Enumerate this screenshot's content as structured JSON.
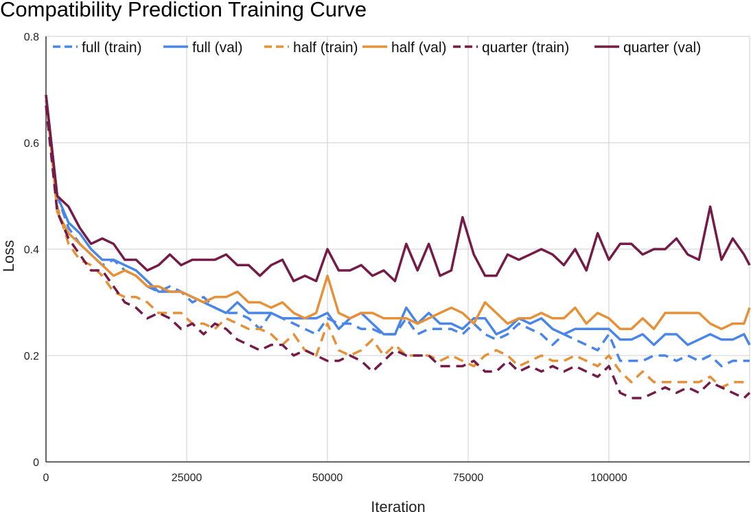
{
  "chart_data": {
    "type": "line",
    "title": "Compatibility Prediction Training Curve",
    "xlabel": "Iteration",
    "ylabel": "Loss",
    "xlim": [
      0,
      125000
    ],
    "ylim": [
      0,
      0.8
    ],
    "xticks": [
      0,
      25000,
      50000,
      75000,
      100000
    ],
    "xtick_labels": [
      "0",
      "25000",
      "50000",
      "75000",
      "100000"
    ],
    "yticks": [
      0,
      0.2,
      0.4,
      0.6,
      0.8
    ],
    "ytick_labels": [
      "0",
      "0.2",
      "0.4",
      "0.6",
      "0.8"
    ],
    "grid": true,
    "legend_position": "top",
    "x": [
      0,
      2000,
      4000,
      6000,
      8000,
      10000,
      12000,
      14000,
      16000,
      18000,
      20000,
      22000,
      24000,
      26000,
      28000,
      30000,
      32000,
      34000,
      36000,
      38000,
      40000,
      42000,
      44000,
      46000,
      48000,
      50000,
      52000,
      54000,
      56000,
      58000,
      60000,
      62000,
      64000,
      66000,
      68000,
      70000,
      72000,
      74000,
      76000,
      78000,
      80000,
      82000,
      84000,
      86000,
      88000,
      90000,
      92000,
      94000,
      96000,
      98000,
      100000,
      102000,
      104000,
      106000,
      108000,
      110000,
      112000,
      114000,
      116000,
      118000,
      120000,
      122000,
      124000,
      125000
    ],
    "series": [
      {
        "name": "full (train)",
        "color": "#4a86e8",
        "dash": true,
        "values": [
          0.68,
          0.5,
          0.44,
          0.41,
          0.39,
          0.37,
          0.38,
          0.36,
          0.35,
          0.33,
          0.32,
          0.33,
          0.32,
          0.3,
          0.31,
          0.29,
          0.28,
          0.28,
          0.27,
          0.25,
          0.28,
          0.27,
          0.26,
          0.25,
          0.24,
          0.27,
          0.26,
          0.26,
          0.25,
          0.25,
          0.24,
          0.24,
          0.27,
          0.24,
          0.25,
          0.25,
          0.25,
          0.24,
          0.26,
          0.24,
          0.23,
          0.24,
          0.26,
          0.25,
          0.24,
          0.22,
          0.24,
          0.23,
          0.22,
          0.21,
          0.24,
          0.19,
          0.19,
          0.19,
          0.2,
          0.2,
          0.19,
          0.2,
          0.19,
          0.2,
          0.18,
          0.19,
          0.19,
          0.19
        ]
      },
      {
        "name": "full (val)",
        "color": "#4a86e8",
        "dash": false,
        "values": [
          0.69,
          0.5,
          0.45,
          0.43,
          0.4,
          0.38,
          0.38,
          0.37,
          0.36,
          0.34,
          0.32,
          0.32,
          0.32,
          0.31,
          0.3,
          0.29,
          0.28,
          0.3,
          0.28,
          0.28,
          0.28,
          0.27,
          0.27,
          0.27,
          0.27,
          0.28,
          0.25,
          0.27,
          0.28,
          0.26,
          0.24,
          0.24,
          0.29,
          0.26,
          0.28,
          0.26,
          0.26,
          0.25,
          0.27,
          0.27,
          0.24,
          0.25,
          0.27,
          0.26,
          0.27,
          0.25,
          0.24,
          0.25,
          0.25,
          0.25,
          0.25,
          0.23,
          0.23,
          0.24,
          0.22,
          0.24,
          0.24,
          0.22,
          0.23,
          0.24,
          0.23,
          0.23,
          0.24,
          0.22
        ]
      },
      {
        "name": "half (train)",
        "color": "#e69138",
        "dash": true,
        "values": [
          0.69,
          0.48,
          0.41,
          0.38,
          0.37,
          0.35,
          0.32,
          0.31,
          0.31,
          0.3,
          0.28,
          0.28,
          0.28,
          0.26,
          0.26,
          0.25,
          0.27,
          0.26,
          0.25,
          0.25,
          0.24,
          0.22,
          0.24,
          0.21,
          0.2,
          0.26,
          0.21,
          0.2,
          0.21,
          0.23,
          0.2,
          0.22,
          0.2,
          0.2,
          0.2,
          0.19,
          0.2,
          0.19,
          0.18,
          0.2,
          0.21,
          0.2,
          0.18,
          0.19,
          0.2,
          0.19,
          0.19,
          0.2,
          0.19,
          0.18,
          0.2,
          0.17,
          0.15,
          0.17,
          0.15,
          0.15,
          0.15,
          0.15,
          0.15,
          0.16,
          0.14,
          0.15,
          0.15,
          0.15
        ]
      },
      {
        "name": "half (val)",
        "color": "#e69138",
        "dash": false,
        "values": [
          0.69,
          0.47,
          0.43,
          0.41,
          0.39,
          0.37,
          0.35,
          0.36,
          0.35,
          0.33,
          0.33,
          0.32,
          0.32,
          0.31,
          0.3,
          0.31,
          0.31,
          0.32,
          0.3,
          0.3,
          0.29,
          0.3,
          0.28,
          0.27,
          0.28,
          0.35,
          0.28,
          0.27,
          0.28,
          0.28,
          0.27,
          0.27,
          0.27,
          0.26,
          0.27,
          0.28,
          0.29,
          0.28,
          0.26,
          0.3,
          0.28,
          0.26,
          0.27,
          0.27,
          0.28,
          0.27,
          0.27,
          0.29,
          0.26,
          0.28,
          0.27,
          0.25,
          0.25,
          0.27,
          0.25,
          0.28,
          0.28,
          0.28,
          0.28,
          0.26,
          0.25,
          0.26,
          0.26,
          0.29
        ]
      },
      {
        "name": "quarter (train)",
        "color": "#741b47",
        "dash": true,
        "values": [
          0.67,
          0.47,
          0.42,
          0.39,
          0.36,
          0.36,
          0.33,
          0.3,
          0.29,
          0.27,
          0.28,
          0.27,
          0.25,
          0.26,
          0.24,
          0.26,
          0.25,
          0.23,
          0.22,
          0.21,
          0.22,
          0.22,
          0.2,
          0.21,
          0.2,
          0.19,
          0.19,
          0.2,
          0.19,
          0.17,
          0.19,
          0.21,
          0.2,
          0.2,
          0.2,
          0.18,
          0.18,
          0.18,
          0.19,
          0.17,
          0.17,
          0.19,
          0.17,
          0.18,
          0.17,
          0.18,
          0.17,
          0.18,
          0.17,
          0.16,
          0.18,
          0.13,
          0.12,
          0.12,
          0.13,
          0.14,
          0.13,
          0.14,
          0.13,
          0.15,
          0.14,
          0.13,
          0.12,
          0.13
        ]
      },
      {
        "name": "quarter (val)",
        "color": "#741b47",
        "dash": false,
        "values": [
          0.69,
          0.5,
          0.48,
          0.44,
          0.41,
          0.42,
          0.41,
          0.38,
          0.38,
          0.36,
          0.37,
          0.39,
          0.37,
          0.38,
          0.38,
          0.38,
          0.39,
          0.37,
          0.37,
          0.35,
          0.37,
          0.38,
          0.34,
          0.35,
          0.34,
          0.4,
          0.36,
          0.36,
          0.37,
          0.35,
          0.36,
          0.34,
          0.41,
          0.36,
          0.41,
          0.35,
          0.36,
          0.46,
          0.39,
          0.35,
          0.35,
          0.39,
          0.38,
          0.39,
          0.4,
          0.39,
          0.37,
          0.4,
          0.36,
          0.43,
          0.38,
          0.41,
          0.41,
          0.39,
          0.4,
          0.4,
          0.42,
          0.39,
          0.38,
          0.48,
          0.38,
          0.42,
          0.39,
          0.37
        ]
      }
    ]
  }
}
